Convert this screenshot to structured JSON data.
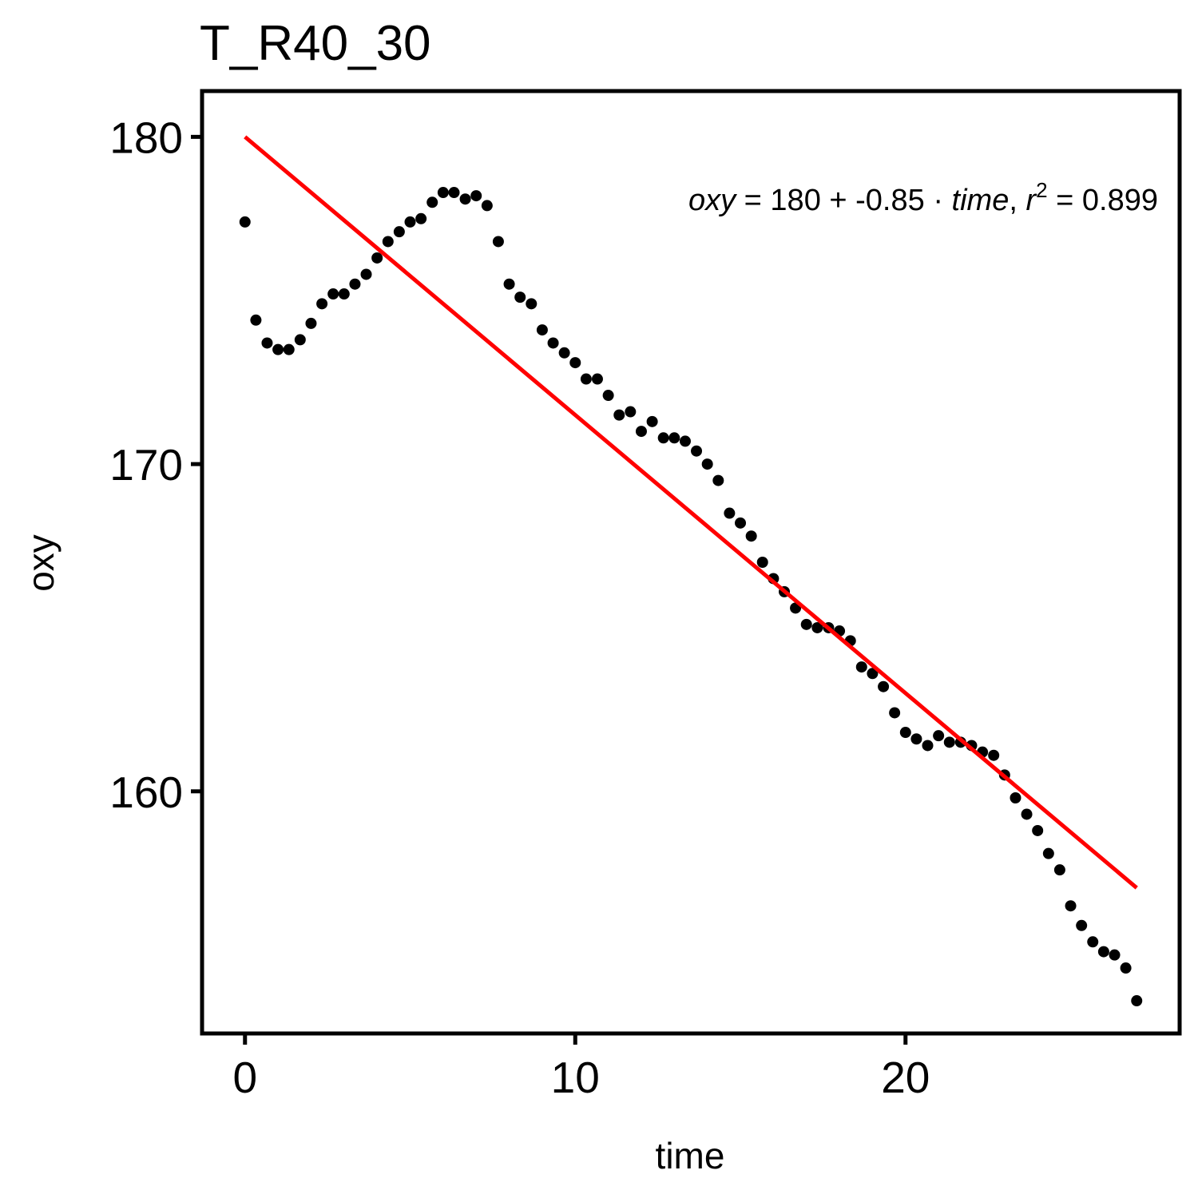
{
  "chart_data": {
    "type": "scatter",
    "title": "T_R40_30",
    "xlabel": "time",
    "ylabel": "oxy",
    "xlim": [
      -1.3,
      28.3
    ],
    "ylim": [
      152.6,
      181.4
    ],
    "xticks": [
      0,
      10,
      20
    ],
    "yticks": [
      160,
      170,
      180
    ],
    "xtick_labels": [
      "0",
      "10",
      "20"
    ],
    "ytick_labels": [
      "160",
      "170",
      "180"
    ],
    "grid": false,
    "series": [
      {
        "kind": "points",
        "color": "#000000",
        "x": [
          0.0,
          0.33,
          0.67,
          1.0,
          1.33,
          1.67,
          2.0,
          2.33,
          2.67,
          3.0,
          3.33,
          3.67,
          4.0,
          4.33,
          4.67,
          5.0,
          5.33,
          5.67,
          6.0,
          6.33,
          6.67,
          7.0,
          7.33,
          7.67,
          8.0,
          8.33,
          8.67,
          9.0,
          9.33,
          9.67,
          10.0,
          10.33,
          10.67,
          11.0,
          11.33,
          11.67,
          12.0,
          12.33,
          12.67,
          13.0,
          13.33,
          13.67,
          14.0,
          14.33,
          14.67,
          15.0,
          15.33,
          15.67,
          16.0,
          16.33,
          16.67,
          17.0,
          17.33,
          17.67,
          18.0,
          18.33,
          18.67,
          19.0,
          19.33,
          19.67,
          20.0,
          20.33,
          20.67,
          21.0,
          21.33,
          21.67,
          22.0,
          22.33,
          22.67,
          23.0,
          23.33,
          23.67,
          24.0,
          24.33,
          24.67,
          25.0,
          25.33,
          25.67,
          26.0,
          26.33,
          26.67,
          27.0
        ],
        "y": [
          177.4,
          174.4,
          173.7,
          173.5,
          173.5,
          173.8,
          174.3,
          174.9,
          175.2,
          175.2,
          175.5,
          175.8,
          176.3,
          176.8,
          177.1,
          177.4,
          177.5,
          178.0,
          178.3,
          178.3,
          178.1,
          178.2,
          177.9,
          176.8,
          175.5,
          175.1,
          174.9,
          174.1,
          173.7,
          173.4,
          173.1,
          172.6,
          172.6,
          172.1,
          171.5,
          171.6,
          171.0,
          171.3,
          170.8,
          170.8,
          170.7,
          170.4,
          170.0,
          169.5,
          168.5,
          168.2,
          167.8,
          167.0,
          166.5,
          166.1,
          165.6,
          165.1,
          165.0,
          165.0,
          164.9,
          164.6,
          163.8,
          163.6,
          163.2,
          162.4,
          161.8,
          161.6,
          161.4,
          161.7,
          161.5,
          161.5,
          161.4,
          161.2,
          161.1,
          160.5,
          159.8,
          159.3,
          158.8,
          158.1,
          157.6,
          156.5,
          155.9,
          155.4,
          155.1,
          155.0,
          154.6,
          153.6
        ]
      },
      {
        "kind": "fit_line",
        "color": "#ff0000",
        "intercept": 180,
        "slope": -0.85,
        "x_range": [
          0,
          27
        ]
      }
    ],
    "annotation": {
      "lhs": "oxy",
      "intercept": "180",
      "slope": "-0.85",
      "var": "time",
      "r2_label": "r",
      "r2_power": "2",
      "r2_value": "0.899",
      "placement": "top-right"
    }
  }
}
